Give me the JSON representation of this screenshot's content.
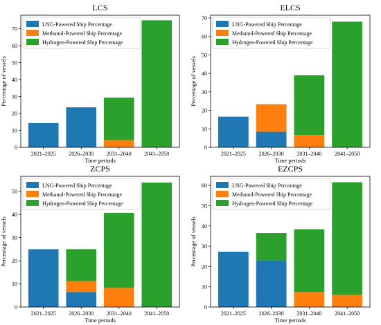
{
  "colors": {
    "lng": "#1f77b4",
    "methanol": "#ff7f0e",
    "hydrogen": "#2ca02c",
    "axis": "#000000",
    "legend_border": "#cccccc"
  },
  "chart_data": [
    {
      "type": "bar",
      "stacked": true,
      "title": "LCS",
      "xlabel": "Time periods",
      "ylabel": "Percentage of vessels",
      "categories": [
        "2021–2025",
        "2026–2030",
        "2031–2040",
        "2041–2050"
      ],
      "ylim": [
        0,
        78
      ],
      "yticks": [
        0,
        10,
        20,
        30,
        40,
        50,
        60,
        70
      ],
      "legend_position": "upper-left",
      "grid": false,
      "series": [
        {
          "name": "LNG-Powered Ship Percentage",
          "color_key": "lng",
          "values": [
            14.3,
            23.6,
            0,
            0
          ]
        },
        {
          "name": "Methanol-Powered Ship Percentage",
          "color_key": "methanol",
          "values": [
            0,
            0,
            4.3,
            0
          ]
        },
        {
          "name": "Hydrogen-Powered Ship Percentage",
          "color_key": "hydrogen",
          "values": [
            0,
            0,
            25.0,
            75.0
          ]
        }
      ]
    },
    {
      "type": "bar",
      "stacked": true,
      "title": "ELCS",
      "xlabel": "Time periods",
      "ylabel": "Percentage of vessels",
      "categories": [
        "2021–2025",
        "2026–2030",
        "2031–2040",
        "2041–2050"
      ],
      "ylim": [
        0,
        71.5
      ],
      "yticks": [
        0,
        10,
        20,
        30,
        40,
        50,
        60,
        70
      ],
      "legend_position": "upper-left",
      "grid": false,
      "series": [
        {
          "name": "LNG-Powered Ship Percentage",
          "color_key": "lng",
          "values": [
            16.6,
            8.4,
            0,
            0
          ]
        },
        {
          "name": "Methanol-Powered Ship Percentage",
          "color_key": "methanol",
          "values": [
            0,
            14.9,
            6.7,
            0
          ]
        },
        {
          "name": "Hydrogen-Powered Ship Percentage",
          "color_key": "hydrogen",
          "values": [
            0,
            0,
            32.3,
            68.0
          ]
        }
      ]
    },
    {
      "type": "bar",
      "stacked": true,
      "title": "ZCPS",
      "xlabel": "Time periods",
      "ylabel": "Percentage of vessels",
      "categories": [
        "2021–2025",
        "2026–2030",
        "2031–2040",
        "2041–2050"
      ],
      "ylim": [
        0,
        56.5
      ],
      "yticks": [
        0,
        10,
        20,
        30,
        40,
        50
      ],
      "legend_position": "upper-left",
      "grid": false,
      "series": [
        {
          "name": "LNG-Powered Ship Percentage",
          "color_key": "lng",
          "values": [
            25.0,
            6.5,
            0,
            0
          ]
        },
        {
          "name": "Methanol-Powered Ship Percentage",
          "color_key": "methanol",
          "values": [
            0,
            4.7,
            8.3,
            0
          ]
        },
        {
          "name": "Hydrogen-Powered Ship Percentage",
          "color_key": "hydrogen",
          "values": [
            0,
            13.8,
            32.4,
            53.8
          ]
        }
      ]
    },
    {
      "type": "bar",
      "stacked": true,
      "title": "EZCPS",
      "xlabel": "Time periods",
      "ylabel": "Percentage of vessels",
      "categories": [
        "2021–2025",
        "2026–2030",
        "2031–2040",
        "2041–2050"
      ],
      "ylim": [
        0,
        64.5
      ],
      "yticks": [
        0,
        10,
        20,
        30,
        40,
        50,
        60
      ],
      "legend_position": "upper-left",
      "grid": false,
      "series": [
        {
          "name": "LNG-Powered Ship Percentage",
          "color_key": "lng",
          "values": [
            27.3,
            23.0,
            0,
            0
          ]
        },
        {
          "name": "Methanol-Powered Ship Percentage",
          "color_key": "methanol",
          "values": [
            0,
            0,
            7.4,
            6.0
          ]
        },
        {
          "name": "Hydrogen-Powered Ship Percentage",
          "color_key": "hydrogen",
          "values": [
            0,
            13.5,
            31.0,
            55.6
          ]
        }
      ]
    }
  ]
}
